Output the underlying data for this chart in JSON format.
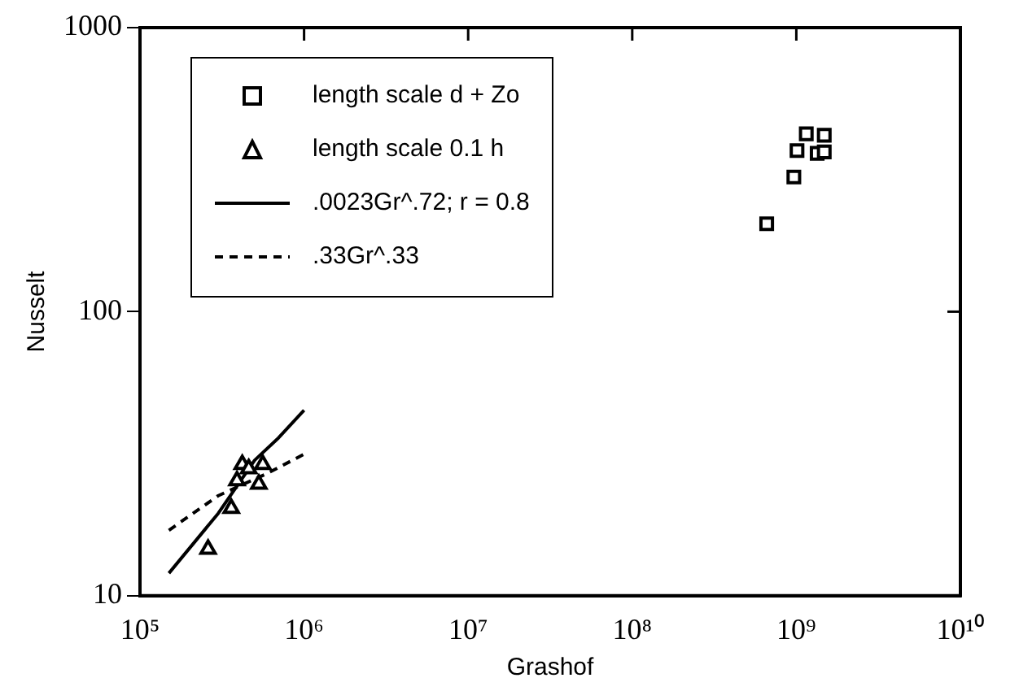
{
  "chart_data": {
    "type": "scatter",
    "xlabel": "Grashof",
    "ylabel": "Nusselt",
    "log": "xy",
    "grid": false,
    "legend": "top left",
    "xlim": [
      100000,
      10000000000
    ],
    "ylim": [
      10,
      1000
    ],
    "xticks": [
      {
        "value": 100000,
        "label": "10⁵"
      },
      {
        "value": 1000000,
        "label": "10⁶"
      },
      {
        "value": 10000000,
        "label": "10⁷"
      },
      {
        "value": 100000000,
        "label": "10⁸"
      },
      {
        "value": 1000000000,
        "label": "10⁹"
      },
      {
        "value": 10000000000,
        "label": "10¹⁰"
      }
    ],
    "yticks": [
      10,
      100,
      1000
    ],
    "series": [
      {
        "name": "length scale d + Zo",
        "type": "scatter",
        "marker": "square",
        "color": "#000000",
        "x": [
          660000000,
          966000000,
          1010000000,
          1150000000,
          1340000000,
          1480000000,
          1480000000
        ],
        "values": [
          204,
          298,
          369,
          423,
          361,
          418,
          365
        ]
      },
      {
        "name": "length scale 0.1 h",
        "type": "scatter",
        "marker": "triangle",
        "color": "#000000",
        "x": [
          260000,
          360000,
          390000,
          420000,
          440000,
          460000,
          490000,
          530000,
          560000
        ],
        "values": [
          14.6,
          20.3,
          25.4,
          29,
          null,
          28,
          null,
          24.7,
          29
        ]
      },
      {
        "name": ".0023Gr^.72; r = 0.8",
        "type": "line",
        "line_style": "solid",
        "marker": "none",
        "color": "#000000",
        "x": [
          150000,
          300000,
          500000,
          700000,
          1000000
        ],
        "values": [
          12,
          19.5,
          30,
          36,
          45
        ]
      },
      {
        "name": ".33Gr^.33",
        "type": "line",
        "line_style": "dashed",
        "marker": "none",
        "color": "#000000",
        "x": [
          150000,
          300000,
          600000,
          1000000
        ],
        "values": [
          17,
          22.5,
          27,
          31.5
        ]
      }
    ]
  }
}
